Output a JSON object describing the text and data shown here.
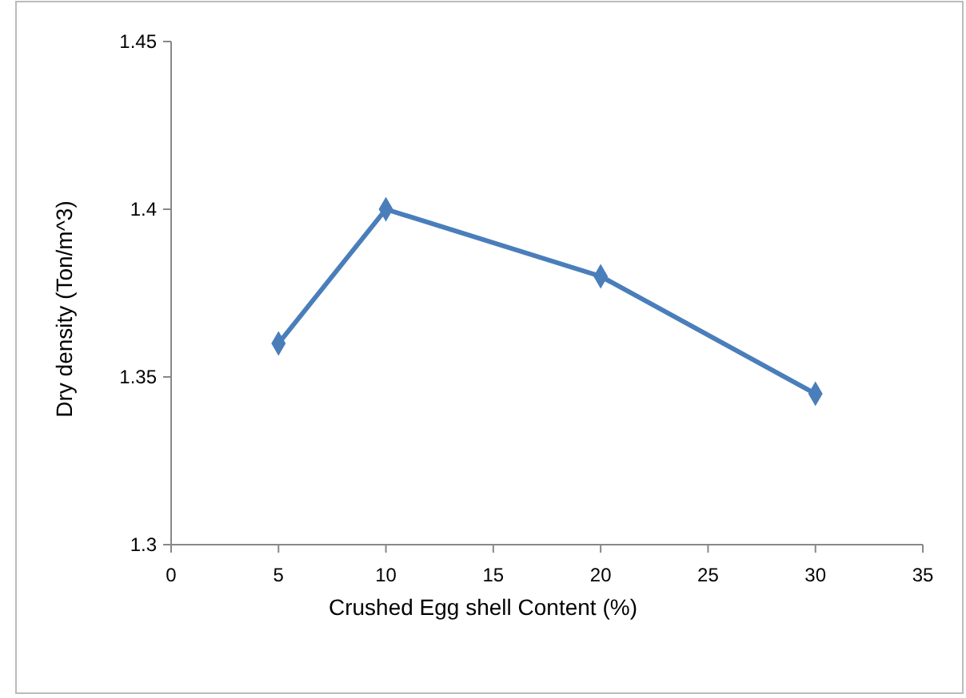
{
  "chart_data": {
    "type": "line",
    "xlabel": "Crushed Egg shell Content (%)",
    "ylabel": "Dry density (Ton/m^3)",
    "x": [
      5,
      10,
      20,
      30
    ],
    "series": [
      {
        "color": "#4a7ebb",
        "values": [
          1.36,
          1.4,
          1.38,
          1.345
        ]
      }
    ],
    "xlim": [
      0,
      35
    ],
    "xticks": [
      0,
      5,
      10,
      15,
      20,
      25,
      30,
      35
    ],
    "ylim": [
      1.3,
      1.45
    ],
    "yticks": [
      1.3,
      1.35,
      1.4,
      1.45
    ],
    "grid": false,
    "marker": "diamond",
    "line_style": "solid"
  }
}
